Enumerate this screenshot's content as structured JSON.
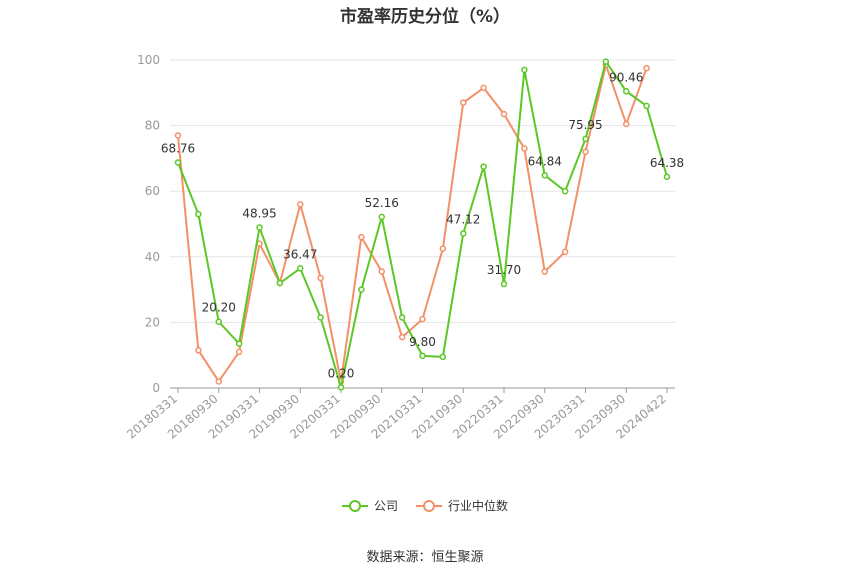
{
  "chart_data": {
    "type": "line",
    "title": "市盈率历史分位（%）",
    "x": [
      "20180331",
      "20180630",
      "20180930",
      "20181231",
      "20190331",
      "20190630",
      "20190930",
      "20191231",
      "20200331",
      "20200630",
      "20200930",
      "20201231",
      "20210331",
      "20210630",
      "20210930",
      "20211231",
      "20220331",
      "20220630",
      "20220930",
      "20221231",
      "20230331",
      "20230630",
      "20230930",
      "20231231",
      "20240422"
    ],
    "x_tick_labels": [
      "20180331",
      "20180930",
      "20190331",
      "20190930",
      "20200331",
      "20200930",
      "20210331",
      "20210930",
      "20220331",
      "20220930",
      "20230331",
      "20230930",
      "20240422"
    ],
    "ylim": [
      0,
      100
    ],
    "y_ticks": [
      0,
      20,
      40,
      60,
      80,
      100
    ],
    "grid": true,
    "legend_position": "bottom",
    "series": [
      {
        "name": "公司",
        "color": "#5cc726",
        "values": [
          68.76,
          53,
          20.2,
          13.5,
          48.95,
          32,
          36.47,
          21.5,
          0.2,
          30,
          52.16,
          21.5,
          9.8,
          9.5,
          47.12,
          67.5,
          31.7,
          97,
          64.84,
          60,
          75.95,
          99.5,
          90.46,
          86,
          64.38
        ],
        "labels": [
          "68.76",
          null,
          "20.20",
          null,
          "48.95",
          null,
          "36.47",
          null,
          "0.20",
          null,
          "52.16",
          null,
          "9.80",
          null,
          "47.12",
          null,
          "31.70",
          null,
          "64.84",
          null,
          "75.95",
          null,
          "90.46",
          null,
          "64.38"
        ]
      },
      {
        "name": "行业中位数",
        "color": "#f49068",
        "values": [
          77,
          11.5,
          2,
          11,
          44,
          32,
          56,
          33.5,
          2,
          46,
          35.5,
          15.5,
          21,
          42.5,
          87,
          91.5,
          83.5,
          73,
          35.5,
          41.5,
          72,
          98.5,
          80.5,
          97.5,
          null
        ]
      }
    ],
    "legend": [
      "公司",
      "行业中位数"
    ]
  },
  "footer": {
    "source": "数据来源：恒生聚源"
  }
}
